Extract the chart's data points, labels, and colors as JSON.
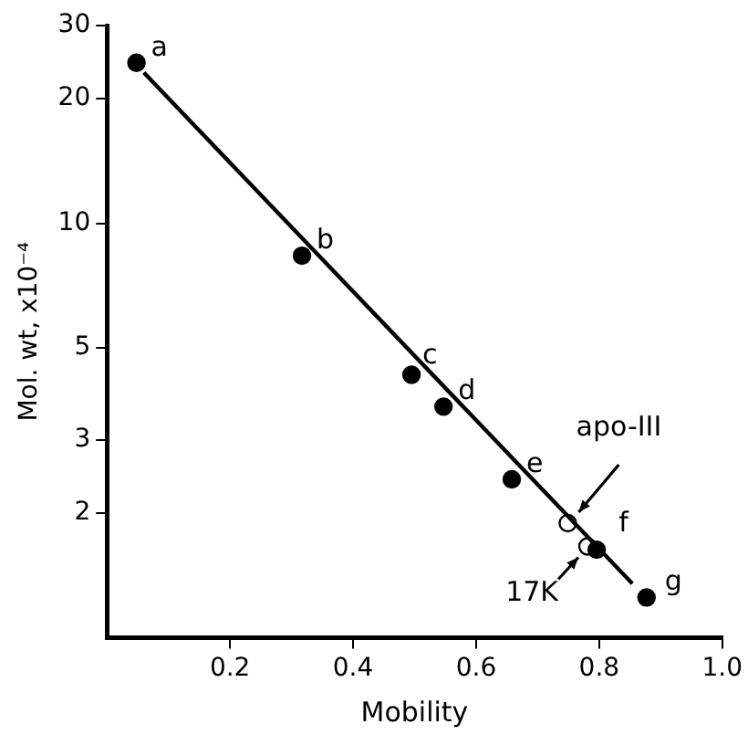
{
  "chart_data": {
    "type": "scatter",
    "xlabel": "Mobility",
    "ylabel": "Mol. wt, x10⁻⁴",
    "log": "y",
    "xlim": [
      0,
      1
    ],
    "ylim": [
      1,
      30
    ],
    "xticks": [
      0.2,
      0.4,
      0.6,
      0.8,
      {
        "value": 1,
        "label": "1.0"
      }
    ],
    "yticks": [
      2,
      3,
      5,
      10,
      20,
      30
    ],
    "grid": false,
    "legend": false,
    "marker": "circle",
    "series": [
      {
        "type": "line",
        "color": "#000000",
        "marker": "none",
        "x": [
          0.06,
          0.854
        ],
        "values": [
          23.1,
          1.35
        ]
      },
      {
        "color": "#000000",
        "x": [
          0.048,
          0.317,
          0.495,
          0.547,
          0.658,
          0.796,
          0.877
        ],
        "values": [
          24.4,
          8.35,
          4.31,
          3.61,
          2.41,
          1.63,
          1.25
        ]
      },
      {
        "color": "#ffffff",
        "x": [
          0.749,
          0.781
        ],
        "values": [
          1.89,
          1.66
        ]
      }
    ],
    "annotations": [
      {
        "text": "a",
        "x": 0.048,
        "y": 24.4
      },
      {
        "text": "b",
        "x": 0.317,
        "y": 8.35
      },
      {
        "text": "c",
        "x": 0.495,
        "y": 4.31
      },
      {
        "text": "d",
        "x": 0.547,
        "y": 3.61
      },
      {
        "text": "e",
        "x": 0.658,
        "y": 2.41
      },
      {
        "text": "f",
        "x": 0.796,
        "y": 1.63
      },
      {
        "text": "g",
        "x": 0.877,
        "y": 1.25
      },
      {
        "text": "apo-III",
        "x": 0.749,
        "y": 1.89
      },
      {
        "text": "17K",
        "x": 0.781,
        "y": 1.66
      }
    ]
  }
}
